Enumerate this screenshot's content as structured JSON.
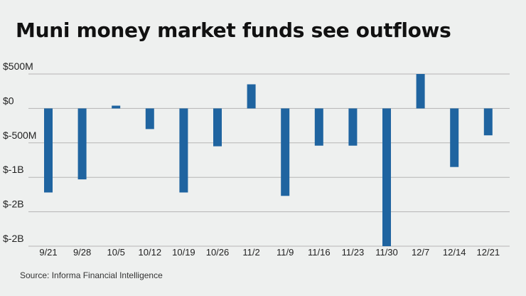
{
  "chart_data": {
    "type": "bar",
    "title": "Muni money market funds see outflows",
    "xlabel": "",
    "ylabel": "",
    "categories": [
      "9/21",
      "9/28",
      "10/5",
      "10/12",
      "10/19",
      "10/26",
      "11/2",
      "11/9",
      "11/16",
      "11/23",
      "11/30",
      "12/7",
      "12/14",
      "12/21"
    ],
    "values": [
      -1220,
      -1030,
      40,
      -300,
      -1220,
      -550,
      350,
      -1270,
      -540,
      -540,
      -2000,
      500,
      -850,
      -390
    ],
    "units": "millions of dollars",
    "ylim": [
      -2000,
      500
    ],
    "y_ticks": [
      500,
      0,
      -500,
      -1000,
      -1500,
      -2000
    ],
    "y_tick_labels": [
      "$500M",
      "$0",
      "$-500M",
      "$-1B",
      "$-2B",
      "$-2B"
    ],
    "grid": true,
    "legend": "none",
    "bar_color": "#1f64a0",
    "grid_color": "#b5b5b5"
  },
  "footer": {
    "source": "Source: Informa Financial Intelligence"
  }
}
